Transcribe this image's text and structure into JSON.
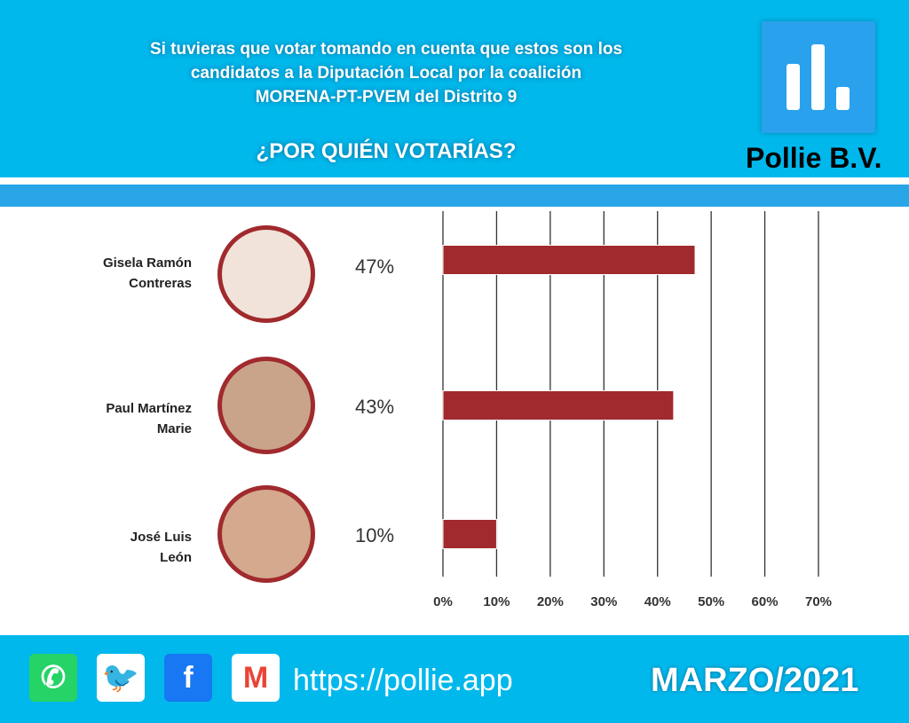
{
  "header": {
    "question_lines": [
      "Si tuvieras que votar tomando en cuenta que estos son los",
      "candidatos a la Diputación Local por la coalición",
      "MORENA-PT-PVEM del Distrito 9"
    ],
    "subtitle": "¿POR QUIÉN VOTARÍAS?",
    "brand": "Pollie B.V."
  },
  "footer": {
    "url": "https://pollie.app",
    "date": "MARZO/2021",
    "icons": [
      "whatsapp-icon",
      "twitter-icon",
      "facebook-icon",
      "gmail-icon"
    ]
  },
  "colors": {
    "header": "#00b8ec",
    "band": "#29a6e8",
    "bar": "#a02a2d"
  },
  "chart_data": {
    "type": "bar",
    "orientation": "horizontal",
    "categories": [
      "Gisela Ramón Contreras",
      "Paul Martínez Marie",
      "José Luis León"
    ],
    "name_lines": [
      [
        "Gisela Ramón",
        "Contreras"
      ],
      [
        "Paul Martínez",
        "Marie"
      ],
      [
        "José Luis",
        "León"
      ]
    ],
    "values": [
      47,
      43,
      10
    ],
    "data_labels": [
      "47%",
      "43%",
      "10%"
    ],
    "xlim": [
      0,
      70
    ],
    "xticks": [
      "0%",
      "10%",
      "20%",
      "30%",
      "40%",
      "50%",
      "60%",
      "70%"
    ],
    "grid": true
  }
}
